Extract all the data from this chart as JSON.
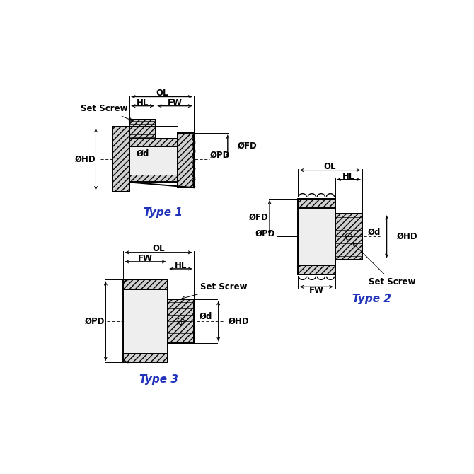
{
  "bg_color": "#ffffff",
  "type_color": "#2233bb",
  "type1_label": "Type 1",
  "type2_label": "Type 2",
  "type3_label": "Type 3",
  "fs_dim": 8.5,
  "fs_type": 11,
  "lw": 1.4,
  "tlw": 0.7,
  "hatch_fc": "#d0d0d0",
  "bore_fc": "#eeeeee"
}
